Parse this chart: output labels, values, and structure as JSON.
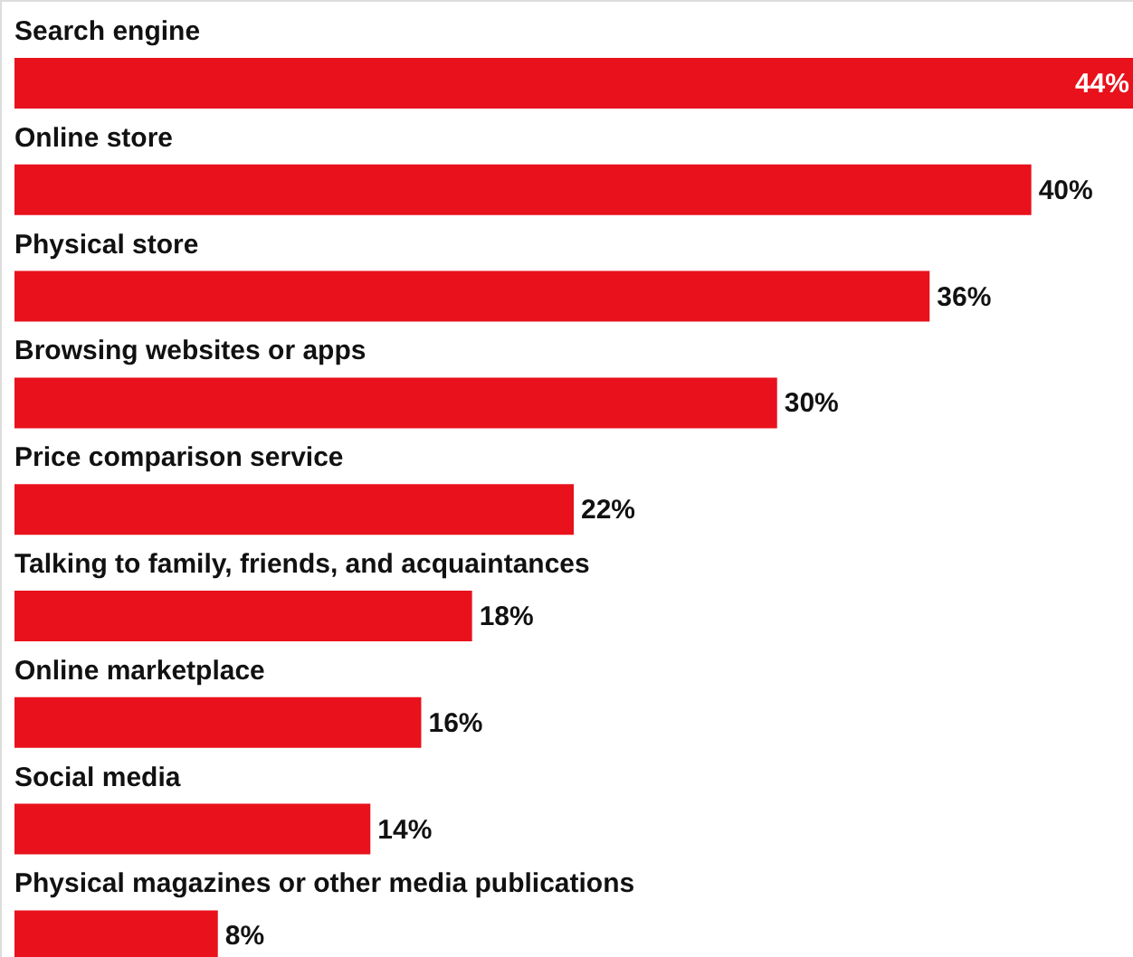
{
  "chart_data": {
    "type": "bar",
    "orientation": "horizontal",
    "categories": [
      "Search engine",
      "Online store",
      "Physical store",
      "Browsing websites or apps",
      "Price comparison service",
      "Talking to family, friends, and acquaintances",
      "Online marketplace",
      "Social media",
      "Physical magazines or other media publications"
    ],
    "values": [
      44,
      40,
      36,
      30,
      22,
      18,
      16,
      14,
      8
    ],
    "value_labels": [
      "44%",
      "40%",
      "36%",
      "30%",
      "22%",
      "18%",
      "16%",
      "14%",
      "8%"
    ],
    "color": "#e8111c"
  }
}
